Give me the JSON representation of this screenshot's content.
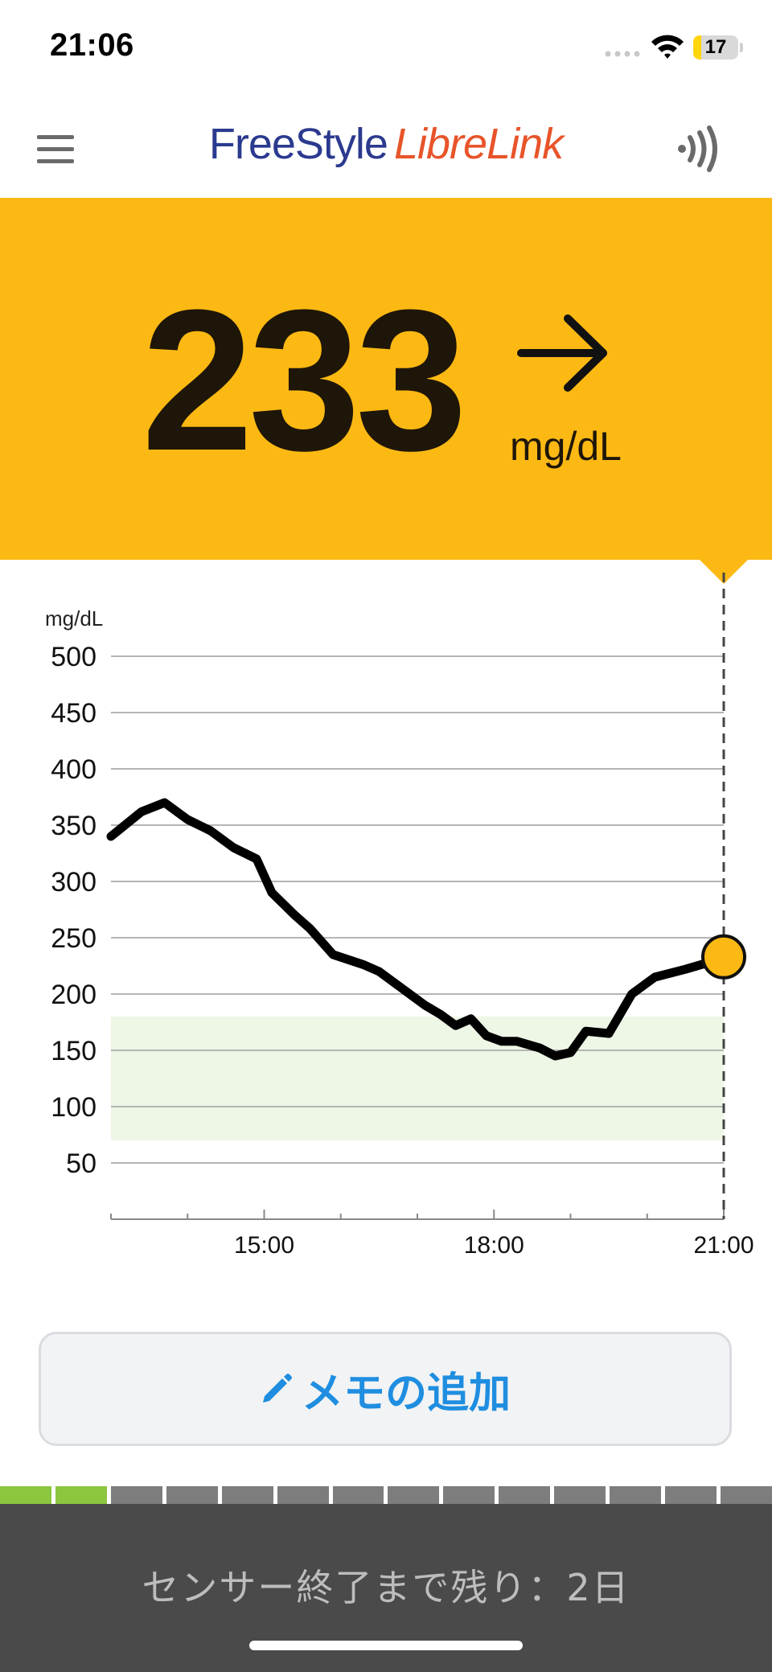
{
  "status_bar": {
    "time": "21:06",
    "battery": "17",
    "battery_percent": 17
  },
  "header": {
    "logo_part1": "FreeStyle",
    "logo_part2": "LibreLink",
    "menu_icon": "hamburger-menu-icon",
    "scan_icon": "nfc-scan-icon"
  },
  "reading": {
    "value": "233",
    "unit": "mg/dL",
    "trend_icon": "arrow-right-icon",
    "panel_color": "#fdb913"
  },
  "chart_data": {
    "type": "line",
    "ylabel": "mg/dL",
    "ylim": [
      0,
      500
    ],
    "yticks": [
      50,
      100,
      150,
      200,
      250,
      300,
      350,
      400,
      450,
      500
    ],
    "xticks": [
      "15:00",
      "18:00",
      "21:00"
    ],
    "x_range_hours": [
      13.0,
      21.0
    ],
    "grid": true,
    "target_range": [
      70,
      180
    ],
    "target_color": "#eef6e6",
    "line_color": "#000000",
    "marker_color": "#fdb913",
    "series": [
      {
        "x": [
          13.0,
          13.4,
          13.7,
          14.0,
          14.3,
          14.6,
          14.9,
          15.1,
          15.4,
          15.6,
          15.9,
          16.3,
          16.5,
          16.8,
          17.1,
          17.3,
          17.5,
          17.7,
          17.9,
          18.1,
          18.3,
          18.6,
          18.8,
          19.0,
          19.2,
          19.5,
          19.8,
          20.1,
          20.5,
          20.8,
          21.0
        ],
        "y": [
          340,
          362,
          370,
          355,
          345,
          330,
          320,
          290,
          270,
          258,
          235,
          226,
          220,
          205,
          190,
          182,
          172,
          178,
          163,
          158,
          158,
          152,
          145,
          148,
          167,
          165,
          200,
          215,
          222,
          228,
          233
        ]
      }
    ],
    "current_point": {
      "x": 21.0,
      "y": 233
    }
  },
  "memo_button": {
    "label": "メモの追加",
    "icon": "pencil-icon"
  },
  "sensor": {
    "text": "センサー終了まで残り：2日",
    "segments_total": 14,
    "segments_used": 2
  }
}
